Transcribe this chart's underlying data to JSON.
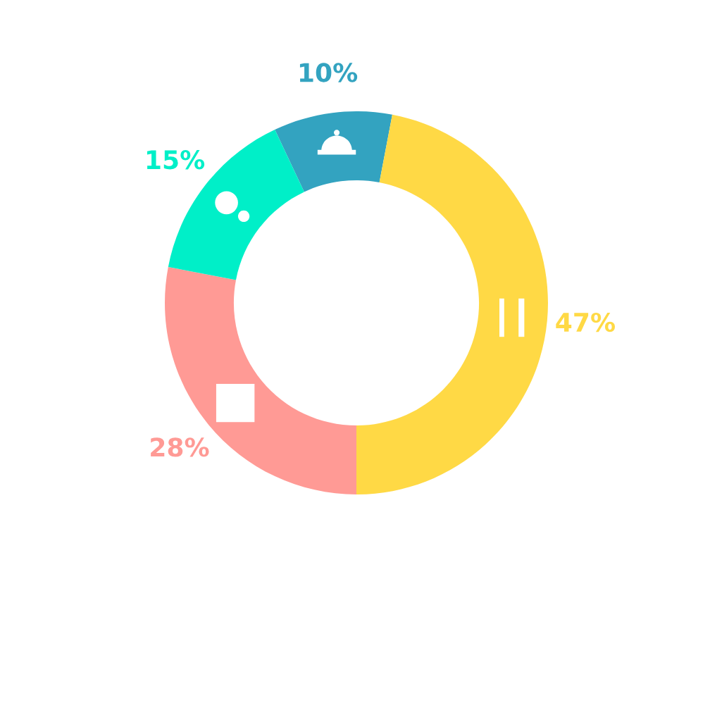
{
  "chart_data": {
    "type": "donut",
    "categories": [
      null,
      null,
      null,
      null
    ],
    "values": [
      10,
      47,
      28,
      15
    ],
    "colors": [
      "#33a3c0",
      "#ffd945",
      "#ff9a95",
      "#00efc8"
    ],
    "value_labels": [
      "10%",
      "47%",
      "28%",
      "15%"
    ]
  }
}
